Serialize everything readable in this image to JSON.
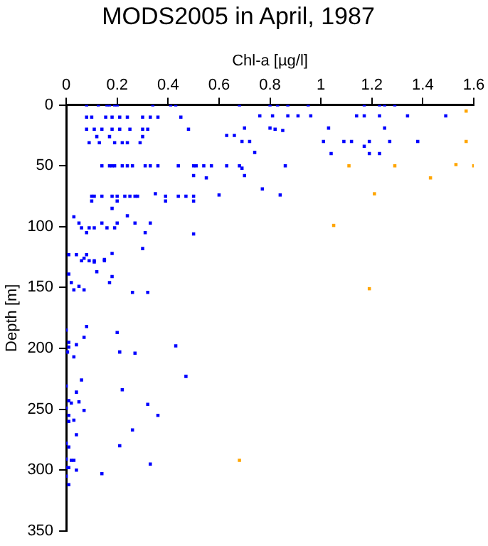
{
  "chart_data": {
    "type": "scatter",
    "title": "MODS2005 in April, 1987",
    "xlabel": "Chl-a [µg/l]",
    "ylabel": "Depth [m]",
    "xlim": [
      0,
      1.6
    ],
    "xticks": [
      0,
      0.2,
      0.4,
      0.6,
      0.8,
      1,
      1.2,
      1.4,
      1.6
    ],
    "ylim": [
      350,
      0
    ],
    "yticks": [
      0,
      50,
      100,
      150,
      200,
      250,
      300,
      350
    ],
    "grid": false,
    "legend": false,
    "marker": "square",
    "series": [
      {
        "color": "#0000ff",
        "x": [
          0.08,
          0.126,
          0.16,
          0.17,
          0.19,
          0.2,
          0.34,
          0.41,
          0.43,
          0.68,
          0.8,
          0.83,
          0.87,
          0.95,
          1.17,
          1.23,
          1.25,
          1.29,
          0.08,
          0.1,
          0.155,
          0.18,
          0.21,
          0.24,
          0.3,
          0.33,
          0.36,
          0.45,
          0.76,
          0.81,
          0.87,
          0.91,
          0.96,
          1.14,
          1.17,
          1.23,
          1.34,
          1.49,
          0.08,
          0.11,
          0.14,
          0.18,
          0.21,
          0.25,
          0.3,
          0.32,
          0.48,
          0.7,
          0.8,
          0.82,
          0.85,
          1.03,
          1.25,
          0.12,
          0.17,
          0.3,
          0.09,
          0.13,
          0.19,
          0.22,
          0.24,
          0.29,
          0.63,
          0.66,
          0.69,
          0.72,
          1.01,
          1.09,
          1.12,
          1.19,
          1.27,
          1.38,
          1.17,
          0.74,
          1.04,
          1.19,
          1.23,
          0.14,
          0.17,
          0.18,
          0.19,
          0.22,
          0.24,
          0.26,
          0.31,
          0.33,
          0.36,
          0.44,
          0.5,
          0.51,
          0.54,
          0.57,
          0.63,
          0.68,
          0.69,
          0.86,
          0.5,
          0.55,
          0.7,
          0.77,
          0.35,
          0.6,
          0.84,
          0.1,
          0.11,
          0.14,
          0.18,
          0.2,
          0.23,
          0.25,
          0.27,
          0.28,
          0.39,
          0.44,
          0.47,
          0.5,
          0.1,
          0.2,
          0.39,
          0.5,
          0.18,
          0.24,
          0.03,
          0.05,
          0.14,
          0.2,
          0.27,
          0.33,
          0.06,
          0.09,
          0.11,
          0.16,
          0.19,
          0.08,
          0.31,
          0.5,
          0.3,
          0.01,
          0.04,
          0.08,
          0.18,
          0.06,
          0.09,
          0.11,
          0.15,
          0.07,
          0.11,
          0.15,
          0.01,
          0.12,
          0.18,
          0.02,
          0.05,
          0.03,
          0.07,
          0.17,
          0.26,
          0.32,
          0,
          0.08,
          0.2,
          0.07,
          0.01,
          0.01,
          0.04,
          0.005,
          0.03,
          0.21,
          0.27,
          0.43,
          0.47,
          0.06,
          0,
          0.04,
          0.22,
          0.01,
          0.02,
          0.05,
          0.32,
          0.07,
          0,
          0.01,
          0.36,
          0.03,
          0.01,
          0.04,
          0.26,
          0,
          0.01,
          0.21,
          0,
          0.02,
          0.03,
          0,
          0.01,
          0.04,
          0.14,
          0.33,
          0,
          0.01
        ],
        "values": [
          0,
          0,
          0,
          0,
          0,
          0,
          0,
          0,
          0,
          0,
          0,
          0,
          0,
          0,
          0,
          0,
          0,
          0,
          10,
          10,
          10,
          10,
          10,
          10,
          10,
          10,
          10,
          10,
          9,
          9,
          9,
          9,
          9,
          9,
          9,
          9,
          9,
          9,
          20,
          20,
          20,
          20,
          20,
          20,
          20,
          20,
          20,
          19,
          19,
          20,
          21,
          19,
          19,
          26,
          26,
          26,
          31,
          31,
          31,
          31,
          31,
          31,
          25,
          25,
          30,
          30,
          30,
          30,
          30,
          30,
          30,
          30,
          34,
          39,
          40,
          40,
          40,
          50,
          50,
          50,
          50,
          50,
          50,
          50,
          50,
          50,
          50,
          50,
          50,
          50,
          50,
          50,
          50,
          50,
          52,
          50,
          58,
          60,
          58,
          69,
          73,
          74,
          74,
          75,
          75,
          75,
          75,
          75,
          75,
          75,
          75,
          75,
          75,
          75,
          75,
          75,
          79,
          79,
          79,
          79,
          85,
          91,
          92,
          97,
          97,
          97,
          97,
          97,
          101,
          101,
          101,
          101,
          101,
          105,
          105,
          106,
          118,
          123,
          123,
          123,
          122,
          128,
          128,
          128,
          128,
          126,
          129,
          127,
          139,
          137,
          141,
          146,
          149,
          152,
          152,
          146,
          154,
          154,
          185,
          182,
          187,
          191,
          195,
          199,
          197,
          203,
          207,
          203,
          204,
          198,
          223,
          226,
          231,
          236,
          234,
          243,
          245,
          244,
          246,
          251,
          249,
          255,
          255,
          259,
          260,
          271,
          267,
          278,
          281,
          280,
          291,
          292,
          292,
          298,
          298,
          300,
          303,
          295,
          305,
          312
        ]
      },
      {
        "color": "#ffa500",
        "x": [
          1.57,
          1.57,
          1.11,
          1.29,
          1.53,
          1.6,
          1.43,
          1.21,
          1.05,
          1.19,
          0.68
        ],
        "values": [
          5,
          30,
          50,
          50,
          49,
          50,
          60,
          73,
          99,
          151,
          292
        ]
      }
    ]
  }
}
